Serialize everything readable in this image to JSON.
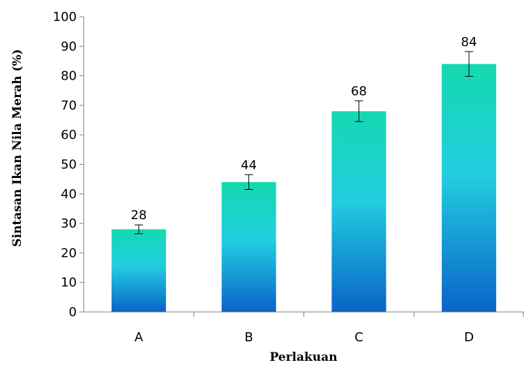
{
  "chart_data": {
    "type": "bar",
    "title": "",
    "xlabel": "Perlakuan",
    "ylabel": "Sintasan Ikan Nila Merah (%)",
    "categories": [
      "A",
      "B",
      "C",
      "D"
    ],
    "values": [
      28,
      44,
      68,
      84
    ],
    "data_labels": [
      "28",
      "44",
      "68",
      "84"
    ],
    "error": [
      1.5,
      2.5,
      3.5,
      4.2
    ],
    "ylim": [
      0,
      100
    ],
    "yticks": [
      0,
      10,
      20,
      30,
      40,
      50,
      60,
      70,
      80,
      90,
      100
    ],
    "ytick_labels": [
      "0",
      "10",
      "20",
      "30",
      "40",
      "50",
      "60",
      "70",
      "80",
      "90",
      "100"
    ],
    "grid": false,
    "legend": "none",
    "colors": {
      "bar_top": "#14d9b0",
      "bar_mid": "#22cde0",
      "bar_bottom": "#0a63c8",
      "axis": "#7f7f7f"
    }
  }
}
